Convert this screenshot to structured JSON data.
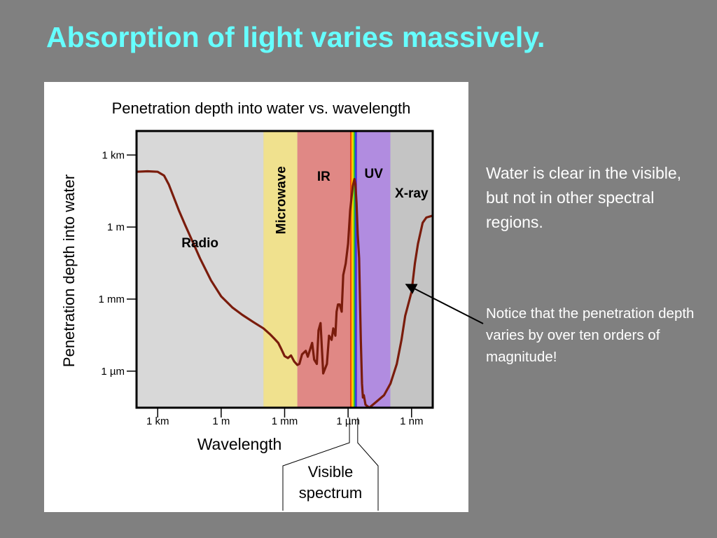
{
  "slide": {
    "title": "Absorption of light varies massively.",
    "note_main": "Water is clear in the visible, but not in other spectral regions.",
    "note_detail": "Notice that the penetration depth varies by over ten orders of magnitude!"
  },
  "chart_data": {
    "type": "line",
    "title": "Penetration depth into water vs. wavelength",
    "xlabel": "Wavelength",
    "ylabel": "Penetration depth into water",
    "x_scale": "log",
    "y_scale": "log",
    "x_units": "m",
    "y_units": "m",
    "xlim": [
      10000,
      1e-10
    ],
    "ylim": [
      3e-08,
      10000
    ],
    "x_ticks": [
      {
        "value": 1000,
        "label": "1 km"
      },
      {
        "value": 1,
        "label": "1 m"
      },
      {
        "value": 0.001,
        "label": "1 mm"
      },
      {
        "value": 1e-06,
        "label": "1 µm"
      },
      {
        "value": 1e-09,
        "label": "1 nm"
      }
    ],
    "y_ticks": [
      {
        "value": 1000,
        "label": "1 km"
      },
      {
        "value": 1,
        "label": "1 m"
      },
      {
        "value": 0.001,
        "label": "1 mm"
      },
      {
        "value": 1e-06,
        "label": "1 µm"
      }
    ],
    "bands": [
      {
        "label": "Radio",
        "from": 10000,
        "to": 0.01,
        "color": "#d8d8d8",
        "vertical": false
      },
      {
        "label": "Microwave",
        "from": 0.01,
        "to": 0.00025,
        "color": "#f0e18e",
        "vertical": true
      },
      {
        "label": "IR",
        "from": 0.00025,
        "to": 8e-07,
        "color": "#e08885",
        "vertical": false
      },
      {
        "label": "UV",
        "from": 3.8e-07,
        "to": 1e-08,
        "color": "#b18ce0",
        "vertical": false
      },
      {
        "label": "X-ray",
        "from": 1e-08,
        "to": 1e-10,
        "color": "#c4c4c4",
        "vertical": false
      }
    ],
    "visible_band": {
      "label": "Visible spectrum",
      "from": 8e-07,
      "to": 3.8e-07
    },
    "grid": false,
    "legend": "none",
    "series": [
      {
        "color": "#7a1c0c",
        "points": [
          [
            10000,
            200
          ],
          [
            3000,
            210
          ],
          [
            1000,
            200
          ],
          [
            500,
            140
          ],
          [
            300,
            60
          ],
          [
            100,
            5
          ],
          [
            50,
            1.2
          ],
          [
            20,
            0.2
          ],
          [
            10,
            0.05
          ],
          [
            3,
            0.006
          ],
          [
            1,
            0.0013
          ],
          [
            0.3,
            0.00045
          ],
          [
            0.1,
            0.00022
          ],
          [
            0.03,
            0.00011
          ],
          [
            0.01,
            6e-05
          ],
          [
            0.005,
            3.5e-05
          ],
          [
            0.003,
            2.2e-05
          ],
          [
            0.002,
            1.5e-05
          ],
          [
            0.0015,
            9e-06
          ],
          [
            0.001,
            4.2e-06
          ],
          [
            0.0007,
            3.5e-06
          ],
          [
            0.0005,
            4.5e-06
          ],
          [
            0.00035,
            2.5e-06
          ],
          [
            0.00025,
            1.8e-06
          ],
          [
            0.0002,
            2e-06
          ],
          [
            0.00015,
            5e-06
          ],
          [
            0.0001,
            7e-06
          ],
          [
            8e-05,
            4e-06
          ],
          [
            6e-05,
            9e-06
          ],
          [
            5e-05,
            1.5e-05
          ],
          [
            4e-05,
            3e-06
          ],
          [
            3e-05,
            2e-06
          ],
          [
            2.5e-05,
            5e-05
          ],
          [
            2e-05,
            0.0001
          ],
          [
            1.5e-05,
            8e-07
          ],
          [
            1e-05,
            2e-06
          ],
          [
            8e-06,
            3e-05
          ],
          [
            6e-06,
            2e-05
          ],
          [
            5e-06,
            6e-05
          ],
          [
            4e-06,
            3e-05
          ],
          [
            3.5e-06,
            0.0003
          ],
          [
            3e-06,
            0.0006
          ],
          [
            2.5e-06,
            0.0006
          ],
          [
            2e-06,
            0.0003
          ],
          [
            1.7e-06,
            0.01
          ],
          [
            1.3e-06,
            0.03
          ],
          [
            1e-06,
            0.2
          ],
          [
            8e-07,
            5
          ],
          [
            6e-07,
            50
          ],
          [
            5e-07,
            100
          ],
          [
            4.5e-07,
            60
          ],
          [
            4e-07,
            10
          ],
          [
            3.5e-07,
            0.5
          ],
          [
            3e-07,
            0.05
          ],
          [
            2.7e-07,
            0.0005
          ],
          [
            2.5e-07,
            2e-05
          ],
          [
            2.2e-07,
            3e-07
          ],
          [
            2e-07,
            8e-08
          ],
          [
            1.8e-07,
            1e-07
          ],
          [
            1.5e-07,
            4e-08
          ],
          [
            1e-07,
            3e-08
          ],
          [
            5e-08,
            5e-08
          ],
          [
            2e-08,
            1e-07
          ],
          [
            1e-08,
            3e-07
          ],
          [
            5e-09,
            2e-06
          ],
          [
            3e-09,
            2e-05
          ],
          [
            2e-09,
            0.0002
          ],
          [
            1e-09,
            0.002
          ],
          [
            7e-10,
            0.03
          ],
          [
            5e-10,
            0.2
          ],
          [
            3e-10,
            1.5
          ],
          [
            2e-10,
            2.5
          ],
          [
            1e-10,
            3
          ]
        ]
      }
    ]
  }
}
